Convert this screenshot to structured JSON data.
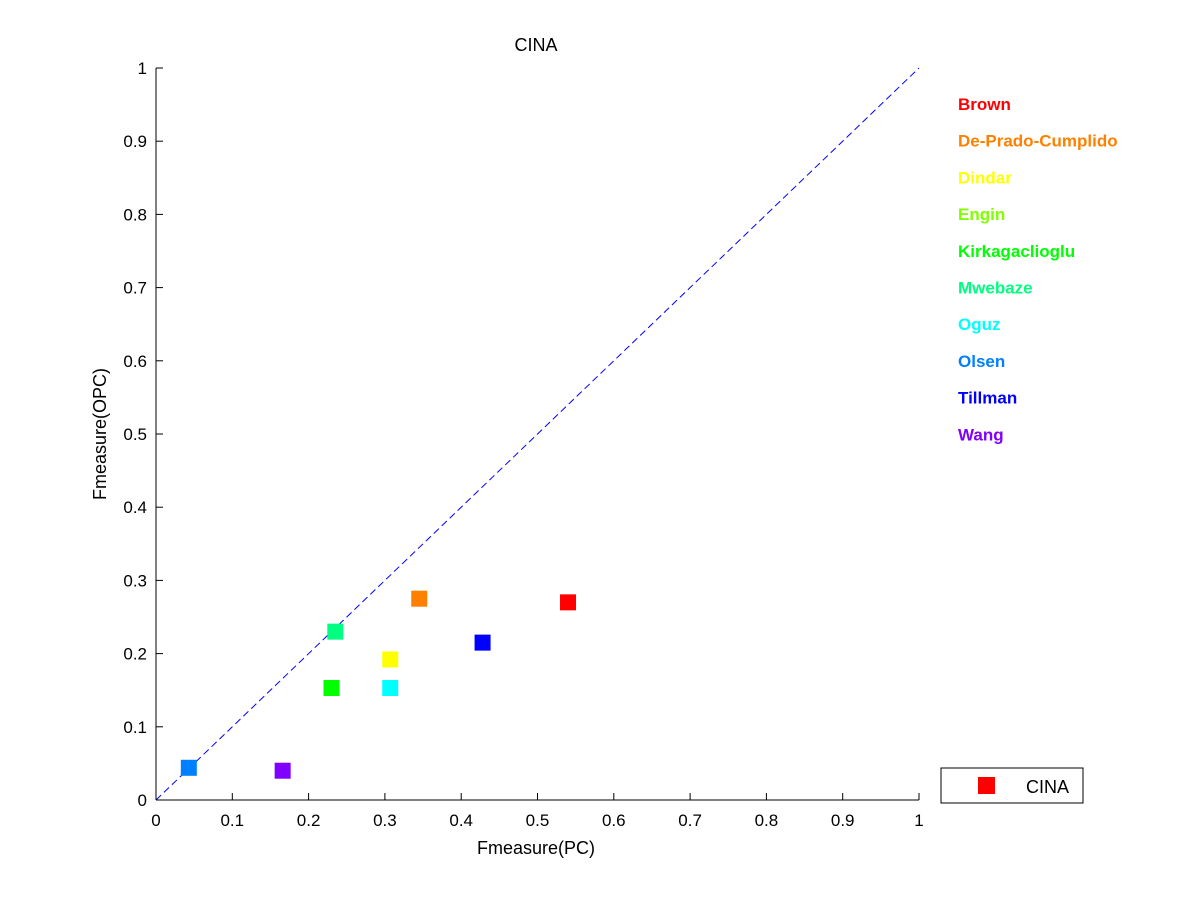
{
  "chart_data": {
    "type": "scatter",
    "title": "CINA",
    "xlabel": "Fmeasure(PC)",
    "ylabel": "Fmeasure(OPC)",
    "xlim": [
      0,
      1
    ],
    "ylim": [
      0,
      1
    ],
    "xticks": [
      "0",
      "0.1",
      "0.2",
      "0.3",
      "0.4",
      "0.5",
      "0.6",
      "0.7",
      "0.8",
      "0.9",
      "1"
    ],
    "yticks": [
      "0",
      "0.1",
      "0.2",
      "0.3",
      "0.4",
      "0.5",
      "0.6",
      "0.7",
      "0.8",
      "0.9",
      "1"
    ],
    "tick_values": [
      0,
      0.1,
      0.2,
      0.3,
      0.4,
      0.5,
      0.6,
      0.7,
      0.8,
      0.9,
      1
    ],
    "grid": false,
    "diagonal_line": {
      "from": [
        0,
        0
      ],
      "to": [
        1,
        1
      ],
      "style": "dashed",
      "color": "#0000ff"
    },
    "series": [
      {
        "name": "Brown",
        "x": 0.54,
        "y": 0.27,
        "color": "#ff0000"
      },
      {
        "name": "De-Prado-Cumplido",
        "x": 0.345,
        "y": 0.275,
        "color": "#ff8000"
      },
      {
        "name": "Dindar",
        "x": 0.307,
        "y": 0.192,
        "color": "#ffff00"
      },
      {
        "name": "Engin",
        "x": null,
        "y": null,
        "color": "#80ff00"
      },
      {
        "name": "Kirkagaclioglu",
        "x": 0.23,
        "y": 0.153,
        "color": "#00ff00"
      },
      {
        "name": "Mwebaze",
        "x": 0.235,
        "y": 0.23,
        "color": "#00ff80"
      },
      {
        "name": "Oguz",
        "x": 0.307,
        "y": 0.153,
        "color": "#00ffff"
      },
      {
        "name": "Olsen",
        "x": 0.043,
        "y": 0.044,
        "color": "#0080ff"
      },
      {
        "name": "Tillman",
        "x": 0.428,
        "y": 0.215,
        "color": "#0000ff"
      },
      {
        "name": "Wang",
        "x": 0.166,
        "y": 0.04,
        "color": "#8000ff"
      }
    ],
    "legend": {
      "label": "CINA",
      "marker_color": "#ff0000",
      "position": "bottom-right"
    }
  }
}
